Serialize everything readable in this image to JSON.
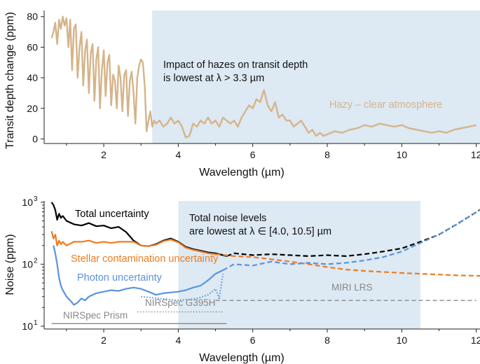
{
  "chart_data": [
    {
      "type": "line",
      "title": "",
      "xlabel": "Wavelength (µm)",
      "ylabel": "Transit depth change (ppm)",
      "xlim": [
        0.4,
        12.1
      ],
      "ylim": [
        -3,
        84
      ],
      "xticks": [
        2,
        4,
        6,
        8,
        10,
        12
      ],
      "yticks": [
        0,
        20,
        40,
        60,
        80
      ],
      "shaded_region": {
        "x_from": 3.3,
        "x_to": 12.1,
        "color": "#dde9f3"
      },
      "annotation_lines": [
        "Impact of hazes on transit depth",
        "is lowest at λ > 3.3 µm"
      ],
      "series": [
        {
          "name": "Hazy – clear atmosphere",
          "color": "#d5b48a",
          "x": [
            0.6,
            0.65,
            0.7,
            0.75,
            0.8,
            0.85,
            0.9,
            0.95,
            1.0,
            1.05,
            1.1,
            1.15,
            1.2,
            1.25,
            1.3,
            1.35,
            1.4,
            1.45,
            1.5,
            1.55,
            1.6,
            1.65,
            1.7,
            1.75,
            1.8,
            1.85,
            1.9,
            1.95,
            2.0,
            2.05,
            2.1,
            2.15,
            2.2,
            2.25,
            2.3,
            2.35,
            2.4,
            2.45,
            2.5,
            2.55,
            2.6,
            2.65,
            2.7,
            2.75,
            2.8,
            2.85,
            2.9,
            2.95,
            3.0,
            3.05,
            3.1,
            3.15,
            3.2,
            3.25,
            3.3,
            3.35,
            3.4,
            3.5,
            3.6,
            3.7,
            3.8,
            3.9,
            4.0,
            4.1,
            4.2,
            4.3,
            4.4,
            4.5,
            4.6,
            4.7,
            4.8,
            4.9,
            5.0,
            5.1,
            5.2,
            5.3,
            5.4,
            5.5,
            5.6,
            5.7,
            5.8,
            5.9,
            6.0,
            6.1,
            6.2,
            6.3,
            6.4,
            6.5,
            6.6,
            6.7,
            6.8,
            6.9,
            7.0,
            7.1,
            7.2,
            7.3,
            7.4,
            7.5,
            7.6,
            7.7,
            7.8,
            7.9,
            8.0,
            8.2,
            8.4,
            8.6,
            8.8,
            9.0,
            9.2,
            9.4,
            9.6,
            9.8,
            10.0,
            10.2,
            10.4,
            10.6,
            10.8,
            11.0,
            11.2,
            11.4,
            11.6,
            11.8,
            12.0
          ],
          "y": [
            66,
            70,
            76,
            62,
            78,
            72,
            80,
            74,
            79,
            60,
            78,
            45,
            72,
            75,
            40,
            60,
            70,
            35,
            58,
            65,
            30,
            56,
            62,
            25,
            52,
            60,
            20,
            45,
            58,
            28,
            50,
            55,
            22,
            42,
            38,
            20,
            48,
            40,
            18,
            42,
            45,
            15,
            38,
            44,
            30,
            10,
            40,
            48,
            52,
            50,
            35,
            5,
            12,
            18,
            8,
            12,
            10,
            12,
            8,
            10,
            14,
            10,
            12,
            8,
            1,
            2,
            10,
            8,
            12,
            10,
            14,
            10,
            12,
            8,
            14,
            12,
            10,
            12,
            8,
            14,
            18,
            22,
            20,
            26,
            24,
            32,
            22,
            18,
            24,
            14,
            16,
            12,
            12,
            8,
            10,
            12,
            8,
            4,
            6,
            2,
            4,
            2,
            3,
            5,
            4,
            6,
            7,
            9,
            8,
            10,
            9,
            8,
            9,
            7,
            6,
            5,
            4,
            5,
            4,
            6,
            7,
            8,
            9
          ]
        }
      ]
    },
    {
      "type": "line",
      "title": "",
      "xlabel": "Wavelength (µm)",
      "ylabel": "Noise (ppm)",
      "yscale": "log",
      "xlim": [
        0.4,
        12.1
      ],
      "ylim": [
        9,
        1050
      ],
      "xticks": [
        2,
        4,
        6,
        8,
        10,
        12
      ],
      "yticks": [
        10,
        100,
        1000
      ],
      "shaded_region": {
        "x_from": 4.0,
        "x_to": 10.5,
        "color": "#dde9f3"
      },
      "annotation_lines": [
        "Total noise levels",
        "are lowest at λ ∈ [4.0, 10.5] µm"
      ],
      "series": [
        {
          "name": "Total uncertainty",
          "color": "#000000",
          "x": [
            0.6,
            0.65,
            0.7,
            0.75,
            0.8,
            0.85,
            0.9,
            1.0,
            1.2,
            1.4,
            1.6,
            1.8,
            2.0,
            2.2,
            2.4,
            2.6,
            2.8,
            3.0,
            3.2,
            3.4,
            3.6,
            3.8,
            4.0,
            4.2,
            4.4,
            4.6,
            4.8,
            5.0,
            5.2,
            5.3
          ],
          "y": [
            1000,
            900,
            750,
            520,
            650,
            560,
            600,
            500,
            440,
            420,
            460,
            410,
            420,
            380,
            400,
            330,
            240,
            200,
            195,
            210,
            240,
            260,
            230,
            190,
            175,
            165,
            155,
            150,
            140,
            135
          ],
          "dash": "solid"
        },
        {
          "name": "Total uncertainty (extended)",
          "color": "#000000",
          "x": [
            5.3,
            5.5,
            6.0,
            6.5,
            7.0,
            7.5,
            8.0,
            8.5,
            9.0,
            9.5,
            10.0,
            10.5,
            11.0,
            11.5,
            12.0,
            12.1
          ],
          "y": [
            135,
            150,
            140,
            145,
            140,
            135,
            140,
            135,
            145,
            160,
            180,
            230,
            300,
            450,
            690,
            760
          ],
          "dash": "dashed"
        },
        {
          "name": "Stellar contamination uncertainty",
          "color": "#ee7b22",
          "x": [
            0.6,
            0.65,
            0.7,
            0.75,
            0.8,
            0.85,
            0.9,
            1.0,
            1.2,
            1.4,
            1.6,
            1.8,
            2.0,
            2.2,
            2.4,
            2.6,
            2.8,
            3.0,
            3.2,
            3.4,
            3.6,
            3.8,
            4.0,
            4.2,
            4.4,
            4.6,
            4.8,
            5.0
          ],
          "y": [
            340,
            260,
            300,
            200,
            240,
            210,
            230,
            200,
            230,
            230,
            240,
            220,
            230,
            220,
            230,
            230,
            230,
            200,
            195,
            205,
            235,
            250,
            225,
            185,
            170,
            160,
            150,
            145
          ],
          "dash": "solid"
        },
        {
          "name": "Stellar contamination uncertainty (extended)",
          "color": "#ee7b22",
          "x": [
            5.0,
            5.5,
            6.0,
            6.5,
            7.0,
            7.5,
            8.0,
            8.5,
            9.0,
            9.5,
            10.0,
            10.5,
            11.0,
            11.5,
            12.0,
            12.1
          ],
          "y": [
            145,
            135,
            130,
            120,
            110,
            100,
            90,
            82,
            78,
            75,
            72,
            70,
            68,
            66,
            65,
            65
          ],
          "dash": "dashed"
        },
        {
          "name": "Photon uncertainty",
          "color": "#5b93dc",
          "x": [
            0.65,
            0.7,
            0.75,
            0.8,
            0.85,
            0.9,
            1.0,
            1.1,
            1.2,
            1.3,
            1.4,
            1.5,
            1.6,
            1.8,
            2.0,
            2.2,
            2.4,
            2.6,
            2.8,
            3.0,
            3.2,
            3.4,
            3.6,
            3.8,
            4.0,
            4.2,
            4.4,
            4.6,
            4.8,
            5.0,
            5.2
          ],
          "y": [
            200,
            150,
            100,
            60,
            45,
            38,
            30,
            26,
            22,
            24,
            28,
            26,
            30,
            34,
            36,
            38,
            37,
            40,
            42,
            40,
            36,
            32,
            34,
            35,
            36,
            38,
            42,
            45,
            55,
            70,
            80
          ],
          "dash": "solid"
        },
        {
          "name": "Photon uncertainty (extended)",
          "color": "#5b93dc",
          "x": [
            5.2,
            5.5,
            6.0,
            6.5,
            7.0,
            7.5,
            8.0,
            8.5,
            9.0,
            9.5,
            10.0,
            10.5,
            11.0,
            11.5,
            12.0,
            12.1
          ],
          "y": [
            80,
            100,
            95,
            110,
            100,
            105,
            100,
            105,
            115,
            130,
            160,
            220,
            300,
            450,
            690,
            760
          ],
          "dash": "dashed"
        },
        {
          "name": "Photon uncertainty (G395H)",
          "color": "#5b93dc",
          "x": [
            3.0,
            3.5,
            4.0,
            4.5,
            4.8,
            5.0,
            5.1,
            5.2
          ],
          "y": [
            30,
            28,
            26,
            28,
            32,
            40,
            28,
            70
          ],
          "dash": "dotted"
        }
      ],
      "instruments": [
        {
          "label": "NIRSpec Prism",
          "x_from": 0.6,
          "x_to": 5.3,
          "y": 11,
          "style": "solid",
          "color": "#888888"
        },
        {
          "label": "NIRSpec G395H",
          "x_from": 2.9,
          "x_to": 5.2,
          "y": 17,
          "style": "dotted",
          "color": "#888888"
        },
        {
          "label": "MIRI LRS",
          "x_from": 5.0,
          "x_to": 12.0,
          "y": 26,
          "style": "dashed",
          "color": "#888888"
        }
      ]
    }
  ]
}
